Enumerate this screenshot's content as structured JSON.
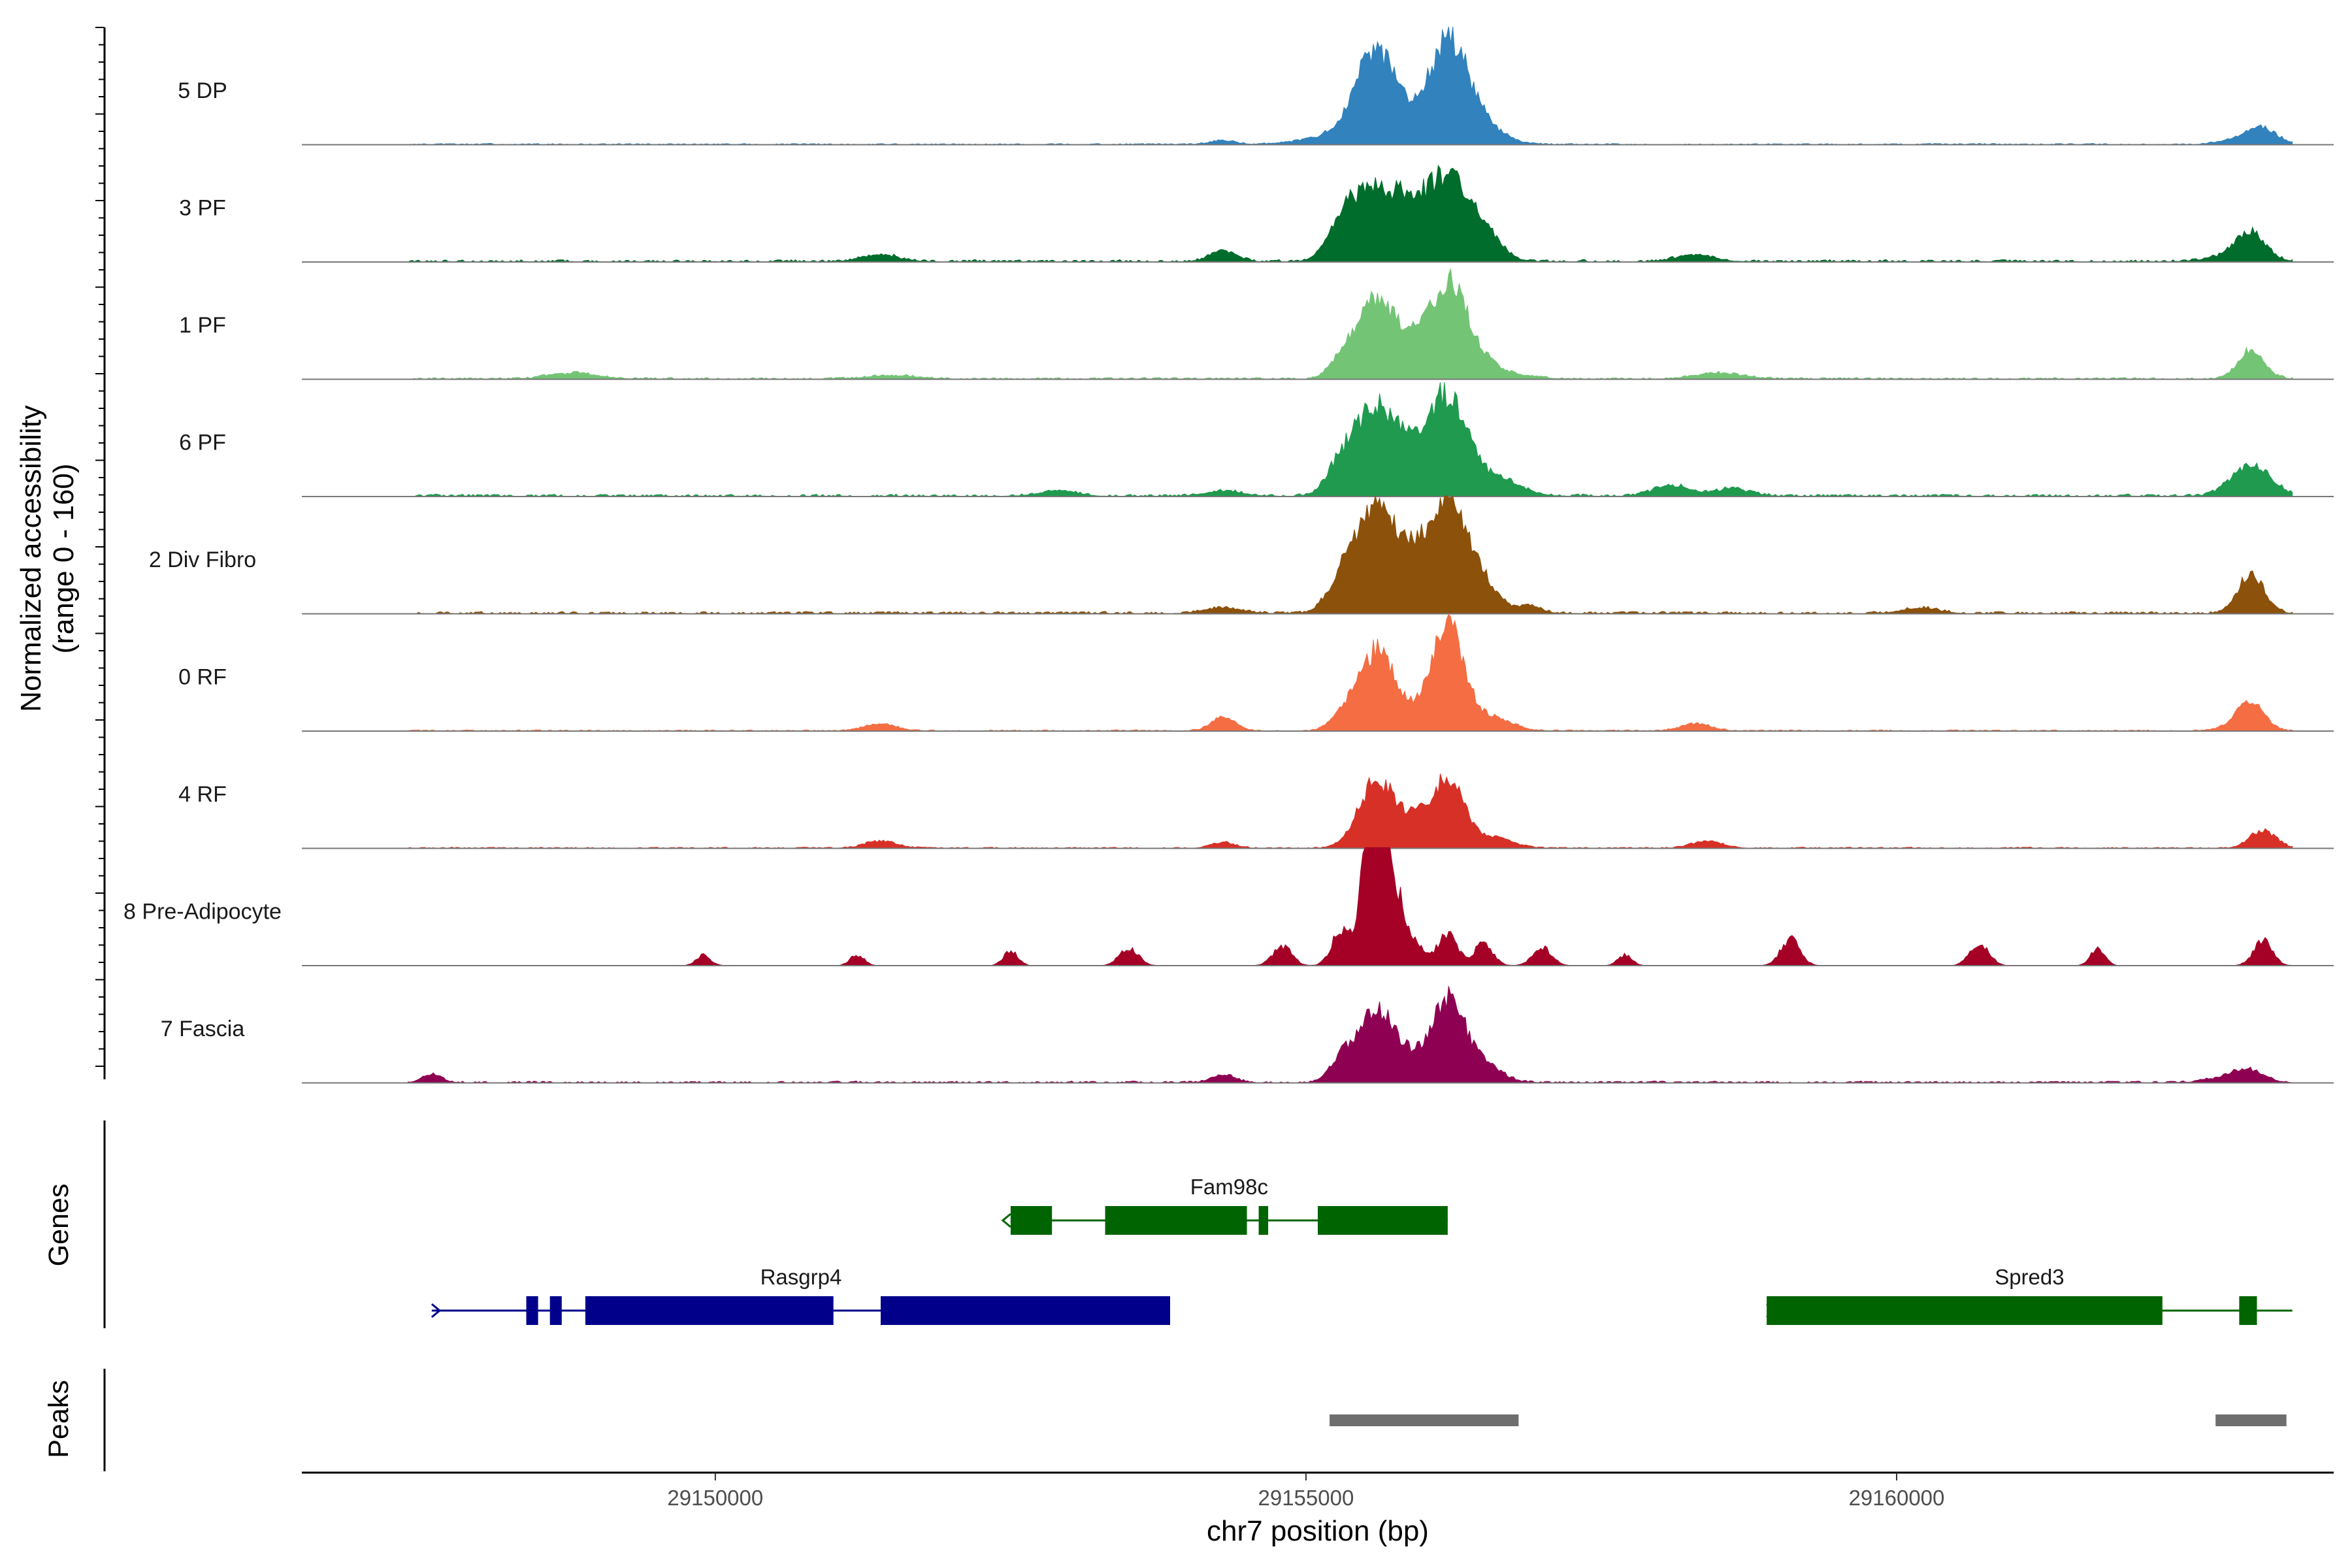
{
  "chart_data": {
    "type": "area",
    "title": "",
    "ylabel_line1": "Normalized accessibility",
    "ylabel_line2": "(range 0 - 160)",
    "ylim": [
      0,
      160
    ],
    "xlabel": "chr7 position (bp)",
    "xlim": [
      29146500,
      29163700
    ],
    "x_ticks": [
      29150000,
      29155000,
      29160000
    ],
    "x_tick_labels": [
      "29150000",
      "29155000",
      "29160000"
    ],
    "tracks": [
      {
        "name": "5 DP",
        "color": "#3182bd",
        "noise": 2,
        "peaks": [
          [
            29155600,
            180,
            130
          ],
          [
            29156200,
            170,
            145
          ],
          [
            29155200,
            250,
            10
          ],
          [
            29156500,
            180,
            22
          ],
          [
            29163100,
            120,
            22
          ],
          [
            29162900,
            150,
            8
          ],
          [
            29154300,
            100,
            6
          ]
        ]
      },
      {
        "name": "3 PF",
        "color": "#006d2c",
        "noise": 4,
        "peaks": [
          [
            29155600,
            190,
            105
          ],
          [
            29156200,
            170,
            120
          ],
          [
            29155300,
            120,
            45
          ],
          [
            29155900,
            120,
            45
          ],
          [
            29156500,
            150,
            35
          ],
          [
            29163000,
            120,
            32
          ],
          [
            29154300,
            110,
            15
          ],
          [
            29151400,
            150,
            10
          ],
          [
            29158300,
            150,
            10
          ],
          [
            29162900,
            200,
            10
          ]
        ]
      },
      {
        "name": "1 PF",
        "color": "#74c476",
        "noise": 3,
        "peaks": [
          [
            29155600,
            170,
            115
          ],
          [
            29156200,
            170,
            130
          ],
          [
            29155300,
            100,
            20
          ],
          [
            29155900,
            120,
            20
          ],
          [
            29156500,
            250,
            15
          ],
          [
            29163000,
            110,
            40
          ],
          [
            29148800,
            200,
            8
          ],
          [
            29158500,
            200,
            8
          ],
          [
            29151500,
            200,
            5
          ]
        ]
      },
      {
        "name": "6 PF",
        "color": "#1f9a4f",
        "noise": 4,
        "peaks": [
          [
            29155600,
            170,
            125
          ],
          [
            29156200,
            160,
            140
          ],
          [
            29155300,
            120,
            40
          ],
          [
            29155900,
            130,
            40
          ],
          [
            29156600,
            200,
            25
          ],
          [
            29163000,
            160,
            45
          ],
          [
            29158100,
            150,
            15
          ],
          [
            29158600,
            150,
            10
          ],
          [
            29152900,
            150,
            8
          ],
          [
            29154300,
            150,
            8
          ]
        ]
      },
      {
        "name": "2 Div Fibro",
        "color": "#8c510a",
        "noise": 4,
        "peaks": [
          [
            29155600,
            170,
            150
          ],
          [
            29156200,
            170,
            160
          ],
          [
            29155300,
            120,
            40
          ],
          [
            29155900,
            120,
            45
          ],
          [
            29156500,
            150,
            30
          ],
          [
            29163000,
            110,
            55
          ],
          [
            29156900,
            100,
            10
          ],
          [
            29154300,
            150,
            8
          ],
          [
            29160200,
            150,
            8
          ]
        ]
      },
      {
        "name": "0 RF",
        "color": "#f46d43",
        "noise": 2,
        "peaks": [
          [
            29155600,
            150,
            115
          ],
          [
            29156200,
            140,
            150
          ],
          [
            29155300,
            100,
            20
          ],
          [
            29155900,
            100,
            15
          ],
          [
            29156600,
            150,
            18
          ],
          [
            29163000,
            110,
            35
          ],
          [
            29154300,
            100,
            20
          ],
          [
            29151400,
            130,
            10
          ],
          [
            29158300,
            130,
            10
          ],
          [
            29162900,
            150,
            8
          ]
        ]
      },
      {
        "name": "4 RF",
        "color": "#d73027",
        "noise": 2,
        "peaks": [
          [
            29155600,
            150,
            95
          ],
          [
            29156200,
            140,
            100
          ],
          [
            29155900,
            120,
            30
          ],
          [
            29156600,
            150,
            15
          ],
          [
            29163100,
            110,
            25
          ],
          [
            29151400,
            130,
            10
          ],
          [
            29158400,
            130,
            10
          ],
          [
            29154300,
            100,
            8
          ]
        ]
      },
      {
        "name": "8 Pre-Adipocyte",
        "color": "#a50026",
        "noise": 0,
        "peaks": [
          [
            29155600,
            80,
            200
          ],
          [
            29155700,
            90,
            120
          ],
          [
            29155500,
            60,
            80
          ],
          [
            29155300,
            80,
            50
          ],
          [
            29155900,
            100,
            35
          ],
          [
            29156200,
            80,
            45
          ],
          [
            29156500,
            80,
            30
          ],
          [
            29157000,
            80,
            25
          ],
          [
            29154800,
            80,
            28
          ],
          [
            29152500,
            60,
            22
          ],
          [
            29153500,
            80,
            25
          ],
          [
            29159100,
            80,
            38
          ],
          [
            29160700,
            80,
            32
          ],
          [
            29163100,
            80,
            35
          ],
          [
            29149900,
            60,
            15
          ],
          [
            29151200,
            60,
            15
          ],
          [
            29157700,
            60,
            15
          ],
          [
            29161700,
            60,
            25
          ]
        ]
      },
      {
        "name": "7 Fascia",
        "color": "#8e0152",
        "noise": 3,
        "peaks": [
          [
            29155600,
            150,
            105
          ],
          [
            29156200,
            140,
            115
          ],
          [
            29155300,
            100,
            30
          ],
          [
            29155900,
            120,
            25
          ],
          [
            29156500,
            150,
            25
          ],
          [
            29163000,
            120,
            15
          ],
          [
            29147600,
            80,
            12
          ],
          [
            29154300,
            100,
            10
          ],
          [
            29162800,
            150,
            8
          ]
        ]
      }
    ],
    "genes": [
      {
        "name": "Fam98c",
        "color": "#006400",
        "strand": "-",
        "start": 29152500,
        "end": 29156200,
        "exons": [
          [
            29152500,
            29152850
          ],
          [
            29153300,
            29154500
          ],
          [
            29154600,
            29154680
          ],
          [
            29155100,
            29156200
          ]
        ]
      },
      {
        "name": "Rasgrp4",
        "color": "#00008b",
        "strand": "+",
        "start": 29147600,
        "end": 29153850,
        "exons": [
          [
            29148400,
            29148500
          ],
          [
            29148600,
            29148700
          ],
          [
            29148900,
            29151000
          ],
          [
            29151400,
            29153850
          ]
        ]
      },
      {
        "name": "Spred3",
        "color": "#006400",
        "strand": "+",
        "start": 29158900,
        "end": 29163350,
        "exons": [
          [
            29158900,
            29162250
          ],
          [
            29162900,
            29163050
          ]
        ]
      }
    ],
    "peaks_track": [
      [
        29155200,
        29156800
      ],
      [
        29162700,
        29163300
      ]
    ],
    "panel_titles": {
      "genes": "Genes",
      "peaks": "Peaks"
    }
  }
}
